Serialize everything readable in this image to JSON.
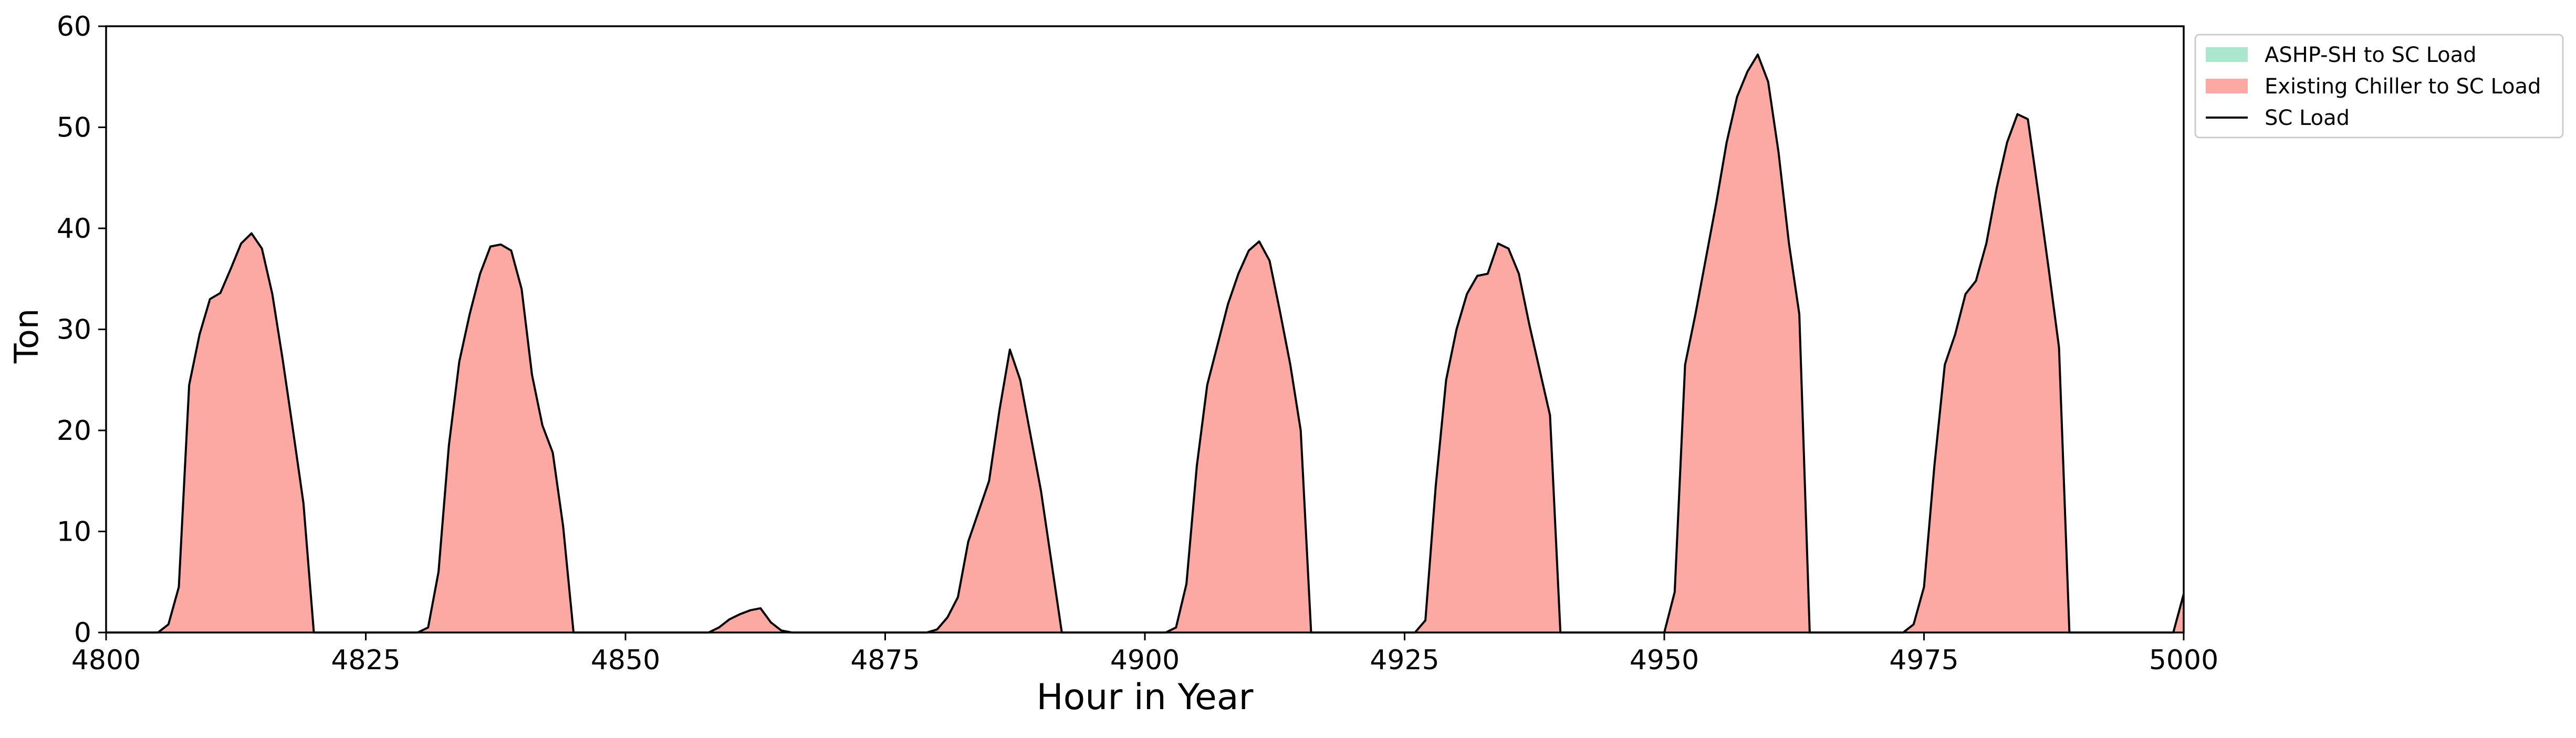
{
  "chart_data": {
    "type": "area",
    "xlabel": "Hour in Year",
    "ylabel": "Ton",
    "xlim": [
      4800,
      5000
    ],
    "ylim": [
      0,
      60
    ],
    "x_ticks": [
      4800,
      4825,
      4850,
      4875,
      4900,
      4925,
      4950,
      4975,
      5000
    ],
    "y_ticks": [
      0,
      10,
      20,
      30,
      40,
      50,
      60
    ],
    "grid": false,
    "legend_position": "outside top-right",
    "colors": {
      "ashp": "#abe6cf",
      "chiller": "#fca9a4",
      "line": "#000000"
    },
    "series": [
      {
        "name": "ASHP-SH to SC Load",
        "kind": "area",
        "color": "#abe6cf",
        "points": []
      },
      {
        "name": "Existing Chiller to SC Load",
        "kind": "area",
        "color": "#fca9a4",
        "points": [
          [
            4800,
            0
          ],
          [
            4805,
            0
          ],
          [
            4806,
            0.8
          ],
          [
            4807,
            4.5
          ],
          [
            4808,
            24.5
          ],
          [
            4809,
            29.5
          ],
          [
            4810,
            33.0
          ],
          [
            4811,
            33.6
          ],
          [
            4812,
            36.0
          ],
          [
            4813,
            38.5
          ],
          [
            4814,
            39.5
          ],
          [
            4815,
            38.0
          ],
          [
            4816,
            33.5
          ],
          [
            4817,
            27.0
          ],
          [
            4818,
            20.0
          ],
          [
            4819,
            12.8
          ],
          [
            4820,
            0
          ],
          [
            4830,
            0
          ],
          [
            4831,
            0.5
          ],
          [
            4832,
            6.0
          ],
          [
            4833,
            18.5
          ],
          [
            4834,
            26.8
          ],
          [
            4835,
            31.5
          ],
          [
            4836,
            35.5
          ],
          [
            4837,
            38.2
          ],
          [
            4838,
            38.4
          ],
          [
            4839,
            37.8
          ],
          [
            4840,
            34.0
          ],
          [
            4841,
            25.5
          ],
          [
            4842,
            20.5
          ],
          [
            4843,
            17.8
          ],
          [
            4844,
            10.5
          ],
          [
            4845,
            0
          ],
          [
            4858,
            0
          ],
          [
            4859,
            0.5
          ],
          [
            4860,
            1.3
          ],
          [
            4861,
            1.8
          ],
          [
            4862,
            2.2
          ],
          [
            4863,
            2.4
          ],
          [
            4864,
            1.0
          ],
          [
            4865,
            0.2
          ],
          [
            4866,
            0
          ],
          [
            4879,
            0
          ],
          [
            4880,
            0.3
          ],
          [
            4881,
            1.5
          ],
          [
            4882,
            3.5
          ],
          [
            4883,
            9.0
          ],
          [
            4884,
            12.0
          ],
          [
            4885,
            15.0
          ],
          [
            4886,
            22.0
          ],
          [
            4887,
            28.0
          ],
          [
            4888,
            25.0
          ],
          [
            4889,
            19.5
          ],
          [
            4890,
            14.0
          ],
          [
            4891,
            7.0
          ],
          [
            4892,
            0
          ],
          [
            4902,
            0
          ],
          [
            4903,
            0.5
          ],
          [
            4904,
            4.8
          ],
          [
            4905,
            16.5
          ],
          [
            4906,
            24.5
          ],
          [
            4907,
            28.5
          ],
          [
            4908,
            32.5
          ],
          [
            4909,
            35.5
          ],
          [
            4910,
            37.8
          ],
          [
            4911,
            38.7
          ],
          [
            4912,
            36.8
          ],
          [
            4913,
            31.8
          ],
          [
            4914,
            26.5
          ],
          [
            4915,
            20.0
          ],
          [
            4916,
            0
          ],
          [
            4926,
            0
          ],
          [
            4927,
            1.2
          ],
          [
            4928,
            14.5
          ],
          [
            4929,
            25.0
          ],
          [
            4930,
            30.0
          ],
          [
            4931,
            33.5
          ],
          [
            4932,
            35.3
          ],
          [
            4933,
            35.5
          ],
          [
            4934,
            38.5
          ],
          [
            4935,
            38.0
          ],
          [
            4936,
            35.5
          ],
          [
            4937,
            30.5
          ],
          [
            4938,
            26.0
          ],
          [
            4939,
            21.5
          ],
          [
            4940,
            0
          ],
          [
            4950,
            0
          ],
          [
            4951,
            4.0
          ],
          [
            4952,
            26.5
          ],
          [
            4953,
            31.5
          ],
          [
            4954,
            37.0
          ],
          [
            4955,
            42.5
          ],
          [
            4956,
            48.5
          ],
          [
            4957,
            53.0
          ],
          [
            4958,
            55.5
          ],
          [
            4959,
            57.2
          ],
          [
            4960,
            54.5
          ],
          [
            4961,
            47.5
          ],
          [
            4962,
            38.5
          ],
          [
            4963,
            31.5
          ],
          [
            4964,
            0
          ],
          [
            4973,
            0
          ],
          [
            4974,
            0.8
          ],
          [
            4975,
            4.5
          ],
          [
            4976,
            16.5
          ],
          [
            4977,
            26.5
          ],
          [
            4978,
            29.5
          ],
          [
            4979,
            33.5
          ],
          [
            4980,
            34.8
          ],
          [
            4981,
            38.5
          ],
          [
            4982,
            44.0
          ],
          [
            4983,
            48.5
          ],
          [
            4984,
            51.3
          ],
          [
            4985,
            50.8
          ],
          [
            4986,
            43.5
          ],
          [
            4987,
            36.0
          ],
          [
            4988,
            28.2
          ],
          [
            4989,
            0
          ],
          [
            4998,
            0
          ],
          [
            4999,
            0
          ],
          [
            5000,
            3.8
          ]
        ]
      },
      {
        "name": "SC Load",
        "kind": "line",
        "color": "#000000",
        "same_as": "Existing Chiller to SC Load"
      }
    ]
  }
}
